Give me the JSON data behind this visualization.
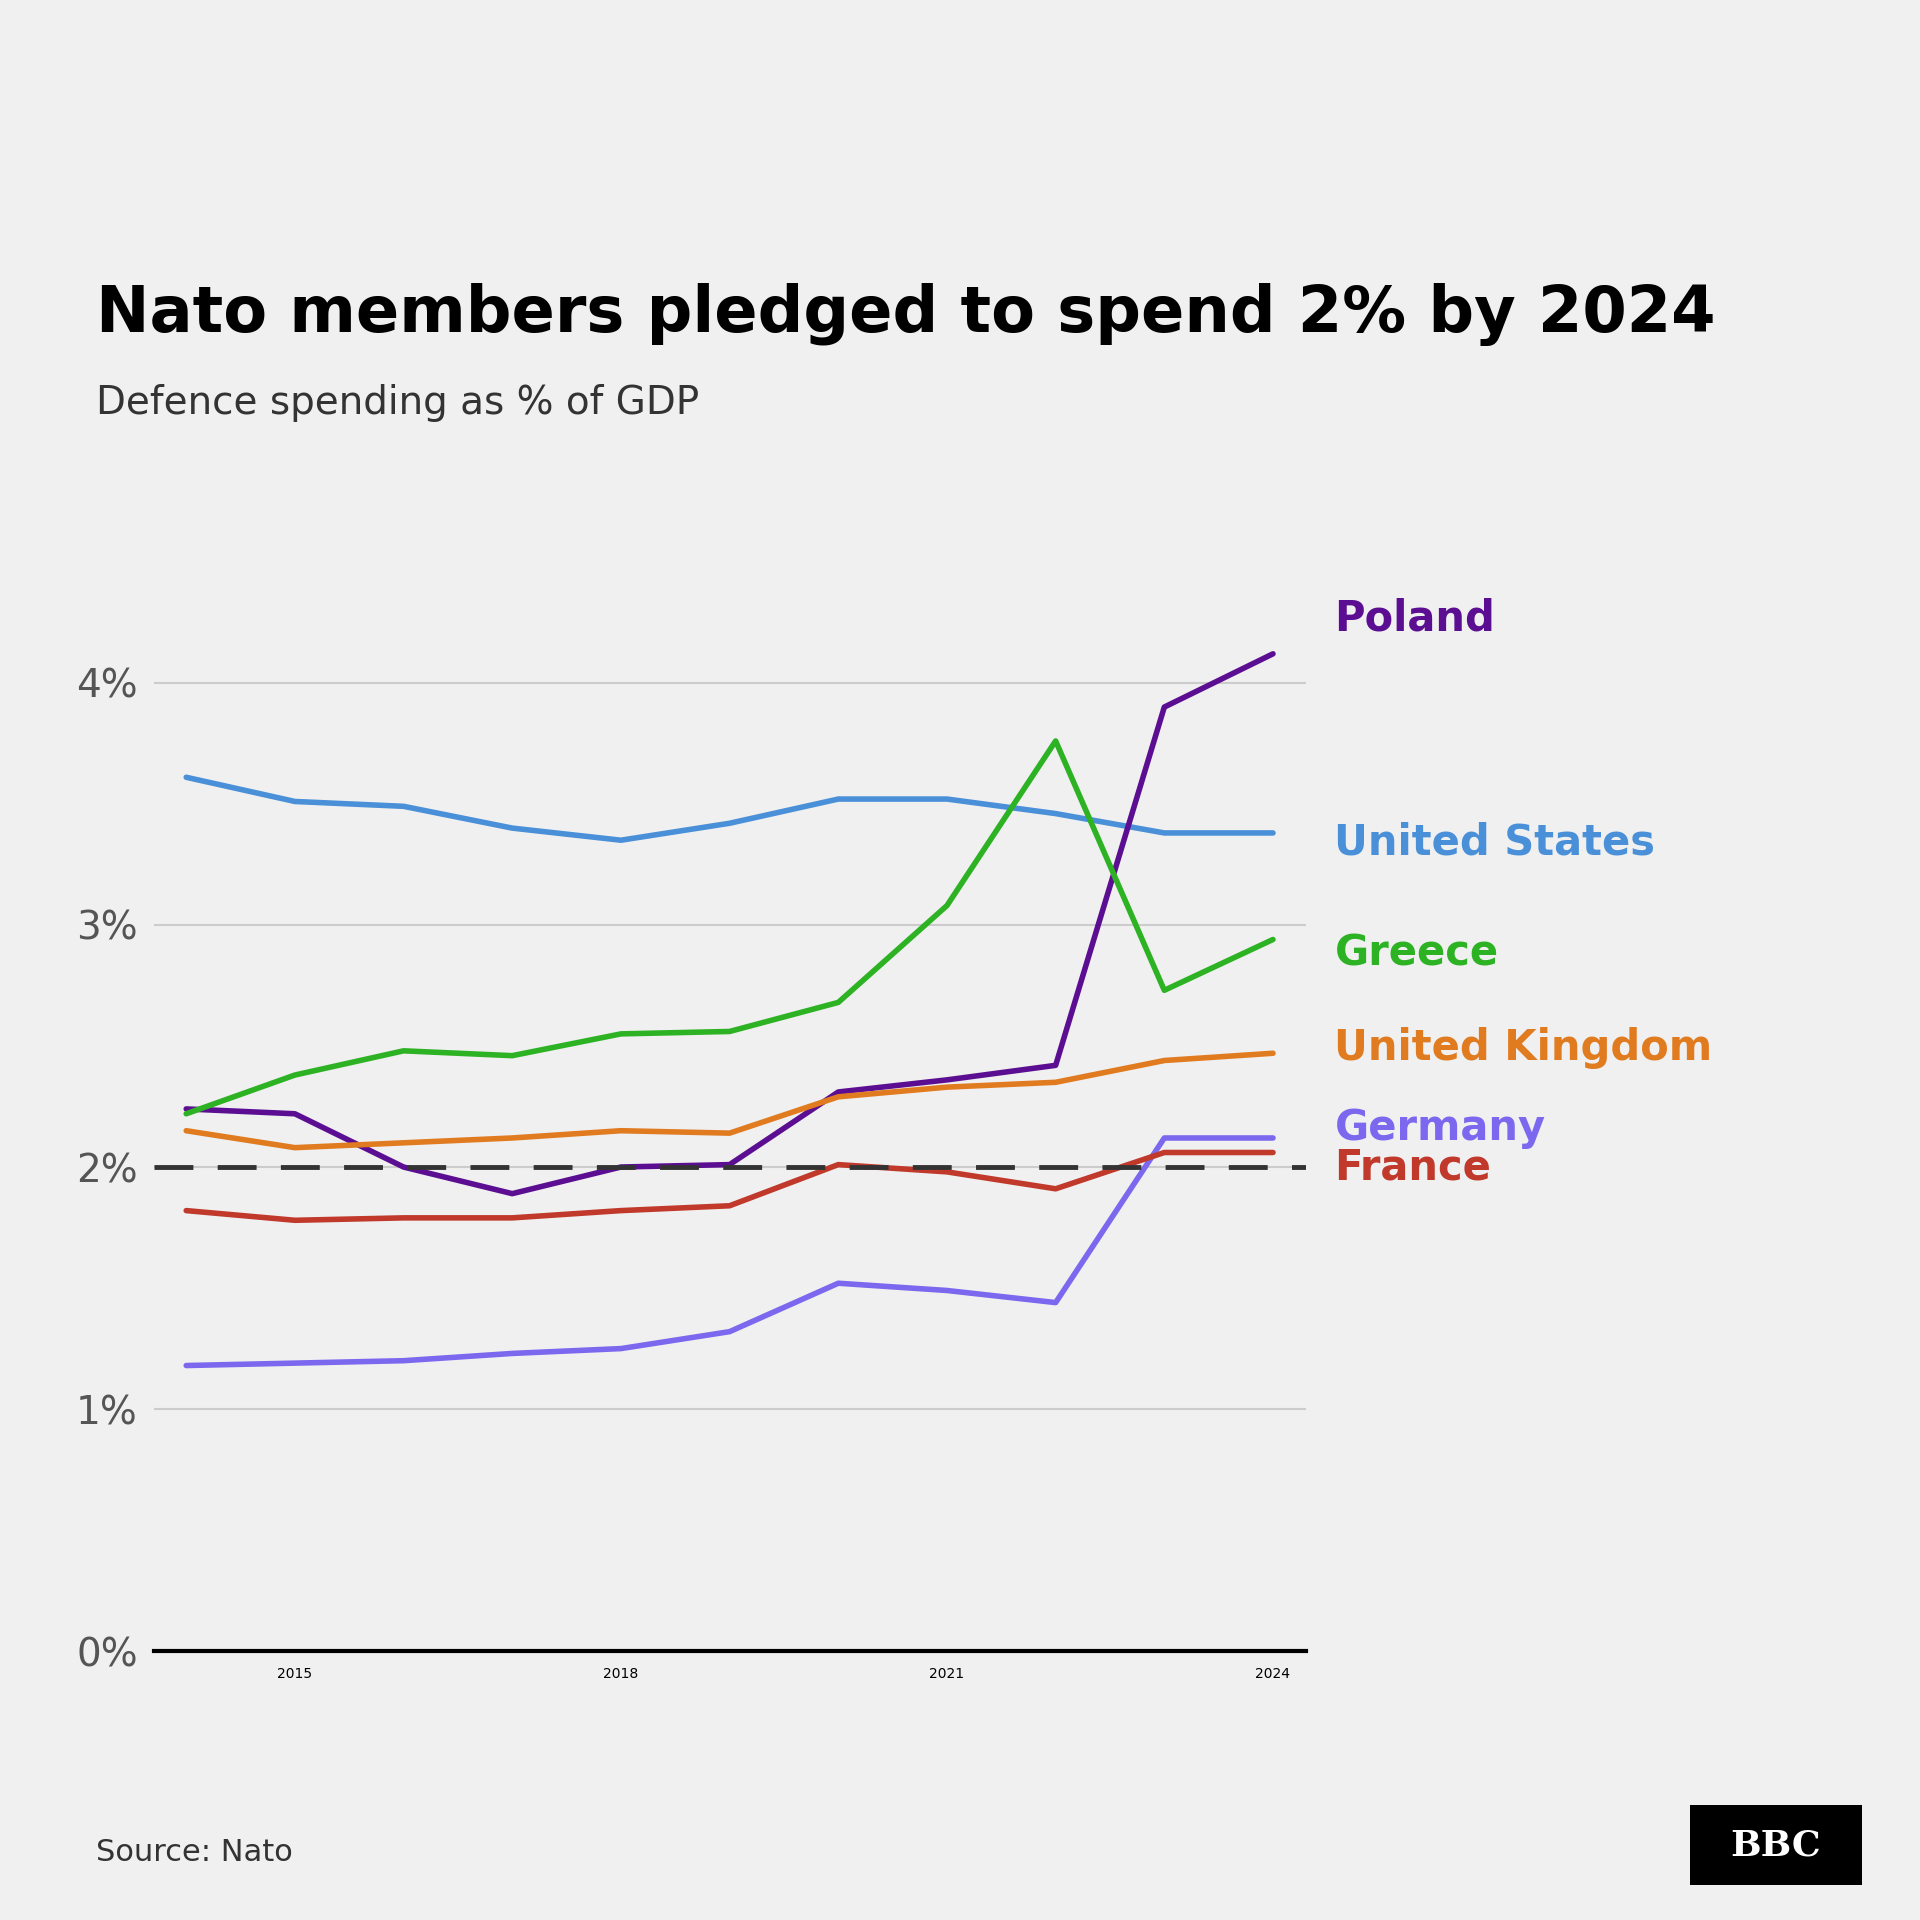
{
  "title": "Nato members pledged to spend 2% by 2024",
  "subtitle": "Defence spending as % of GDP",
  "source": "Source: Nato",
  "background_color": "#f0f0f0",
  "years": [
    2014,
    2015,
    2016,
    2017,
    2018,
    2019,
    2020,
    2021,
    2022,
    2023,
    2024
  ],
  "series": {
    "United States": {
      "color": "#4a90d9",
      "data": [
        3.61,
        3.51,
        3.49,
        3.4,
        3.35,
        3.42,
        3.52,
        3.52,
        3.46,
        3.38,
        3.38
      ]
    },
    "Poland": {
      "color": "#5b0e91",
      "data": [
        2.24,
        2.22,
        2.0,
        1.89,
        2.0,
        2.01,
        2.31,
        2.36,
        2.42,
        3.9,
        4.12
      ]
    },
    "Greece": {
      "color": "#2db224",
      "data": [
        2.22,
        2.38,
        2.48,
        2.46,
        2.55,
        2.56,
        2.68,
        3.08,
        3.76,
        2.73,
        2.94
      ]
    },
    "United Kingdom": {
      "color": "#e07b20",
      "data": [
        2.15,
        2.08,
        2.1,
        2.12,
        2.15,
        2.14,
        2.29,
        2.33,
        2.35,
        2.44,
        2.47
      ]
    },
    "Germany": {
      "color": "#7b68ee",
      "data": [
        1.18,
        1.19,
        1.2,
        1.23,
        1.25,
        1.32,
        1.52,
        1.49,
        1.44,
        2.12,
        2.12
      ]
    },
    "France": {
      "color": "#c0392b",
      "data": [
        1.82,
        1.78,
        1.79,
        1.79,
        1.82,
        1.84,
        2.01,
        1.98,
        1.91,
        2.06,
        2.06
      ]
    }
  },
  "ylim": [
    0,
    4.6
  ],
  "yticks": [
    0,
    1,
    2,
    3,
    4
  ],
  "ytick_labels": [
    "0%",
    "1%",
    "2%",
    "3%",
    "4%"
  ],
  "target_line": 2.0,
  "xlabel_years": [
    2015,
    2018,
    2021,
    2024
  ],
  "title_fontsize": 46,
  "subtitle_fontsize": 28,
  "label_fontsize": 30,
  "tick_fontsize": 28,
  "source_fontsize": 22,
  "line_width": 4.0,
  "label_configs": {
    "Poland": {
      "y": 4.18,
      "va": "bottom"
    },
    "United States": {
      "y": 3.34,
      "va": "center"
    },
    "Greece": {
      "y": 2.88,
      "va": "center"
    },
    "United Kingdom": {
      "y": 2.49,
      "va": "center"
    },
    "Germany": {
      "y": 2.16,
      "va": "center"
    },
    "France": {
      "y": 2.0,
      "va": "center"
    }
  }
}
